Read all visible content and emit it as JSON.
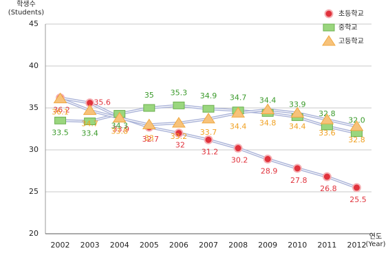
{
  "chart_data": {
    "type": "line",
    "y_label": "학생수",
    "y_unit_label": "(Students)",
    "x_label": "연도",
    "x_unit_label": "(Year)",
    "categories": [
      "2002",
      "2003",
      "2004",
      "2005",
      "2006",
      "2007",
      "2008",
      "2009",
      "2010",
      "2011",
      "2012"
    ],
    "series": [
      {
        "name": "초등학교",
        "color": "#e0323c",
        "marker": "circle",
        "values": [
          36.2,
          35.6,
          33.9,
          32.7,
          32,
          31.2,
          30.2,
          28.9,
          27.8,
          26.8,
          25.5
        ]
      },
      {
        "name": "중학교",
        "color": "#3a9a2a",
        "marker": "square",
        "values": [
          33.5,
          33.4,
          34.3,
          35,
          35.3,
          34.9,
          34.7,
          34.4,
          33.9,
          32.8,
          32.0
        ],
        "value_labels": [
          "33.5",
          "33.4",
          "34.3",
          "35",
          "35.3",
          "34.9",
          "34.7",
          "34.4",
          "33.9",
          "32.8",
          "32.0"
        ]
      },
      {
        "name": "고등학교",
        "color": "#f0a020",
        "marker": "triangle",
        "values": [
          36.1,
          34.7,
          33.8,
          33.0,
          33.2,
          33.7,
          34.4,
          34.8,
          34.4,
          33.6,
          32.8
        ]
      }
    ],
    "ylim": [
      20,
      45
    ],
    "yticks": [
      20,
      25,
      30,
      35,
      40,
      45
    ],
    "grid": true,
    "legend": "top-right"
  }
}
